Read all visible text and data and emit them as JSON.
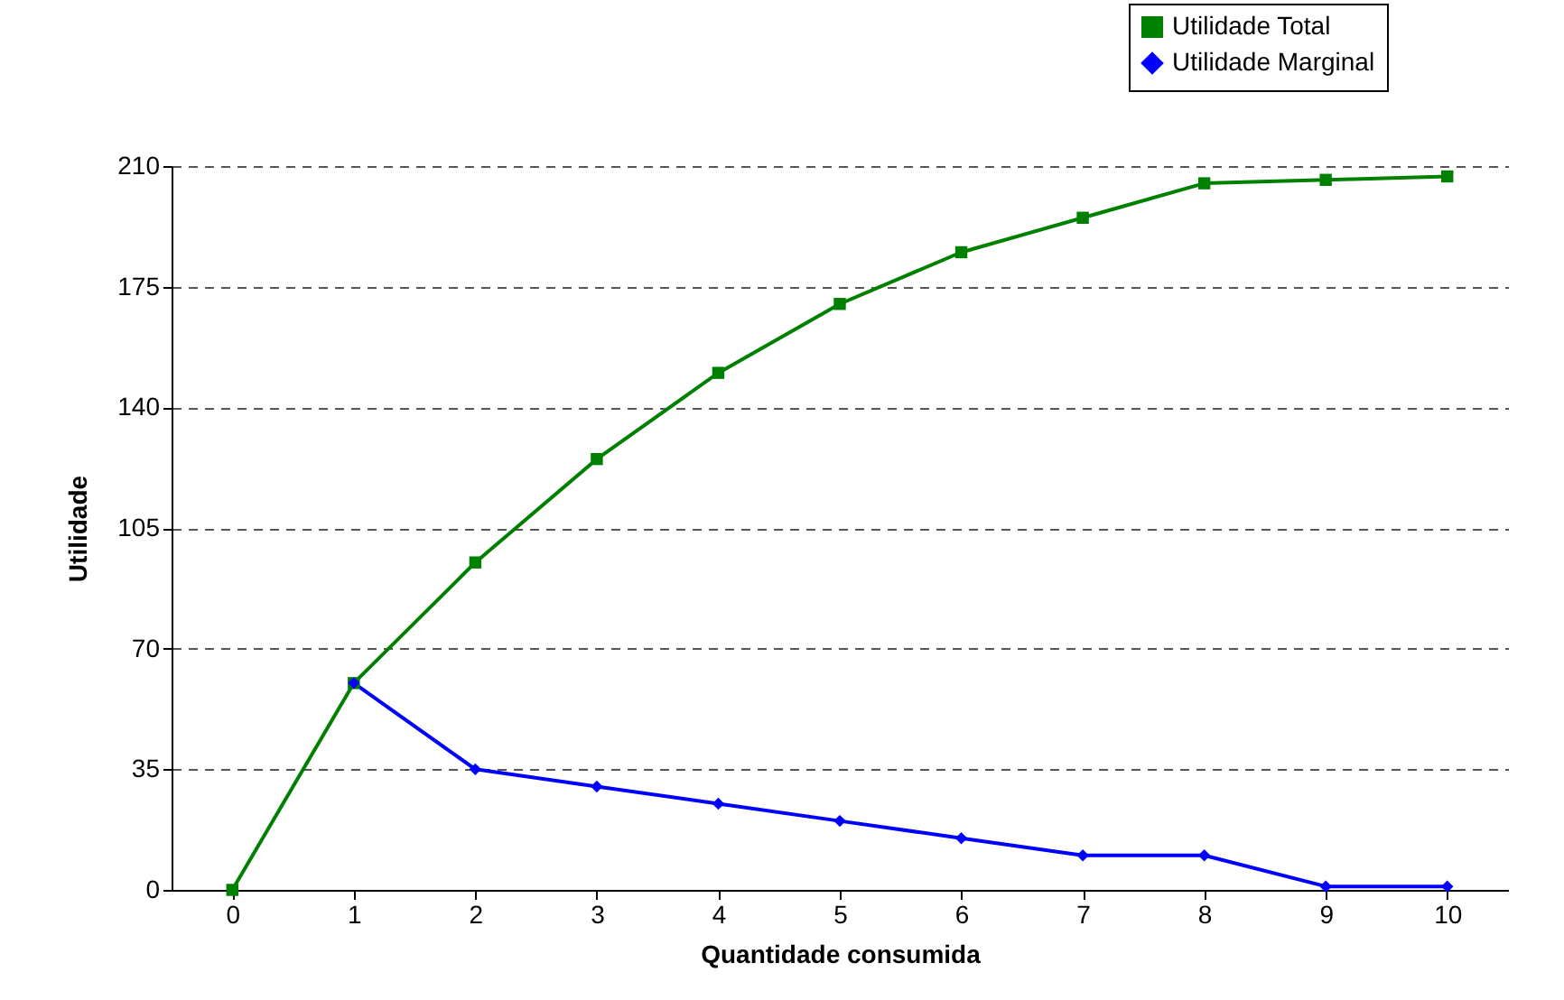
{
  "chart_data": {
    "type": "line",
    "xlabel": "Quantidade consumida",
    "ylabel": "Utilidade",
    "categories": [
      "0",
      "1",
      "2",
      "3",
      "4",
      "5",
      "6",
      "7",
      "8",
      "9",
      "10"
    ],
    "series": [
      {
        "name": "Utilidade Total",
        "color": "#008000",
        "marker": "square",
        "values": [
          0,
          60,
          95,
          125,
          150,
          170,
          185,
          195,
          205,
          206,
          207
        ]
      },
      {
        "name": "Utilidade Marginal",
        "color": "#0000ff",
        "marker": "diamond",
        "values": [
          null,
          60,
          35,
          30,
          25,
          20,
          15,
          10,
          10,
          1,
          1
        ]
      }
    ],
    "ylim": [
      0,
      210
    ],
    "yticks": [
      0,
      35,
      70,
      105,
      140,
      175,
      210
    ],
    "grid": "y",
    "legend": "top right",
    "line_style": "solid"
  }
}
